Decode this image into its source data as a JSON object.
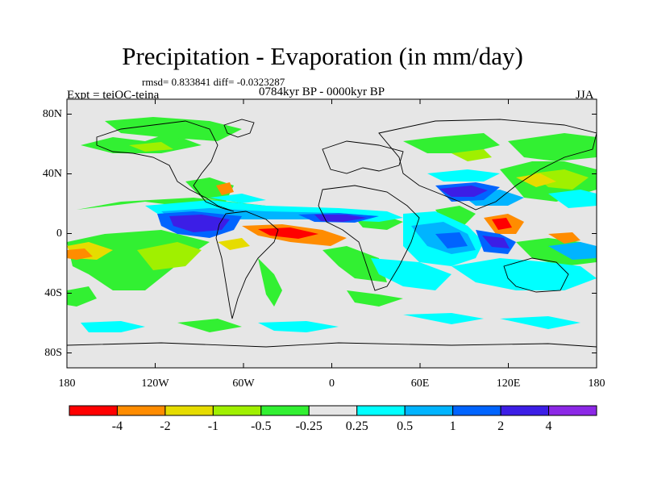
{
  "title": "Precipitation - Evaporation (in mm/day)",
  "stats": "rmsd= 0.833841 diff= -0.0323287",
  "experiment": "Expt = teiOC-teina",
  "period": "0784kyr BP - 0000kyr BP",
  "season": "JJA",
  "lat_ticks": [
    "80N",
    "40N",
    "0",
    "40S",
    "80S"
  ],
  "lat_values": [
    80,
    40,
    0,
    -40,
    -80
  ],
  "lon_ticks": [
    "180",
    "120W",
    "60W",
    "0",
    "60E",
    "120E",
    "180"
  ],
  "lon_values": [
    -180,
    -120,
    -60,
    0,
    60,
    120,
    180
  ],
  "colorbar": {
    "colors": [
      "#ff0000",
      "#ff8c00",
      "#e6dc00",
      "#a0f000",
      "#32f032",
      "#e6e6e6",
      "#00ffff",
      "#00b4ff",
      "#0064ff",
      "#3c1ee6",
      "#8c28e6"
    ],
    "labels": [
      "-4",
      "-2",
      "-1",
      "-0.5",
      "-0.25",
      "0.25",
      "0.5",
      "1",
      "2",
      "4"
    ]
  }
}
